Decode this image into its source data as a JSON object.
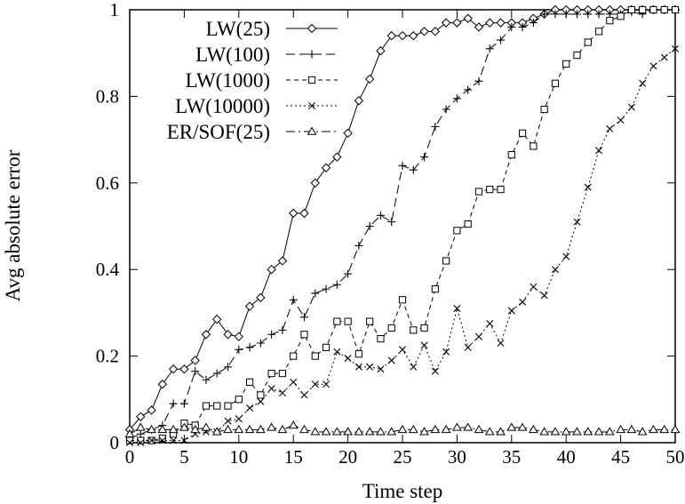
{
  "chart_data": {
    "type": "line",
    "xlabel": "Time step",
    "ylabel": "Avg absolute error",
    "xlim": [
      0,
      50
    ],
    "ylim": [
      0,
      1
    ],
    "xticks": [
      0,
      5,
      10,
      15,
      20,
      25,
      30,
      35,
      40,
      45,
      50
    ],
    "yticks": [
      0,
      0.2,
      0.4,
      0.6,
      0.8,
      1
    ],
    "ytick_labels": [
      "0",
      "0.2",
      "0.4",
      "0.6",
      "0.8",
      "1"
    ],
    "grid": false,
    "legend_position": "top-left",
    "x": [
      0,
      1,
      2,
      3,
      4,
      5,
      6,
      7,
      8,
      9,
      10,
      11,
      12,
      13,
      14,
      15,
      16,
      17,
      18,
      19,
      20,
      21,
      22,
      23,
      24,
      25,
      26,
      27,
      28,
      29,
      30,
      31,
      32,
      33,
      34,
      35,
      36,
      37,
      38,
      39,
      40,
      41,
      42,
      43,
      44,
      45,
      46,
      47,
      48,
      49,
      50
    ],
    "series": [
      {
        "name": "LW(25)",
        "marker": "diamond",
        "dash": "",
        "values": [
          0.03,
          0.06,
          0.075,
          0.135,
          0.17,
          0.17,
          0.19,
          0.25,
          0.285,
          0.25,
          0.245,
          0.315,
          0.335,
          0.4,
          0.42,
          0.53,
          0.53,
          0.6,
          0.635,
          0.66,
          0.715,
          0.79,
          0.84,
          0.905,
          0.94,
          0.94,
          0.94,
          0.95,
          0.95,
          0.97,
          0.97,
          0.98,
          0.96,
          0.97,
          0.97,
          0.97,
          0.97,
          0.98,
          0.99,
          1.0,
          1.0,
          1.0,
          1.0,
          1.0,
          1.0,
          1.0,
          1.0,
          1.0,
          1.0,
          1.0,
          1.0
        ]
      },
      {
        "name": "LW(100)",
        "marker": "plus",
        "dash": "10,5",
        "values": [
          0.01,
          0.02,
          0.03,
          0.04,
          0.09,
          0.09,
          0.165,
          0.145,
          0.16,
          0.175,
          0.215,
          0.22,
          0.23,
          0.25,
          0.26,
          0.33,
          0.29,
          0.345,
          0.355,
          0.365,
          0.39,
          0.455,
          0.5,
          0.525,
          0.51,
          0.64,
          0.63,
          0.66,
          0.73,
          0.77,
          0.795,
          0.815,
          0.835,
          0.91,
          0.93,
          0.96,
          0.96,
          0.97,
          0.99,
          0.99,
          0.99,
          0.99,
          0.99,
          0.99,
          0.99,
          0.99,
          0.995,
          0.99,
          1.0,
          1.0,
          1.0
        ]
      },
      {
        "name": "LW(1000)",
        "marker": "square",
        "dash": "5,4",
        "values": [
          0.005,
          0.005,
          0.005,
          0.01,
          0.02,
          0.045,
          0.04,
          0.085,
          0.085,
          0.085,
          0.1,
          0.14,
          0.11,
          0.16,
          0.16,
          0.2,
          0.25,
          0.2,
          0.22,
          0.28,
          0.28,
          0.205,
          0.28,
          0.24,
          0.265,
          0.33,
          0.26,
          0.265,
          0.355,
          0.42,
          0.49,
          0.505,
          0.58,
          0.585,
          0.585,
          0.665,
          0.715,
          0.685,
          0.77,
          0.83,
          0.875,
          0.895,
          0.925,
          0.95,
          0.975,
          0.985,
          1.0,
          1.0,
          1.0,
          1.0,
          1.0
        ]
      },
      {
        "name": "LW(10000)",
        "marker": "cross",
        "dash": "2,3",
        "values": [
          0.0,
          0.0,
          0.005,
          0.005,
          0.005,
          0.005,
          0.02,
          0.025,
          0.025,
          0.05,
          0.055,
          0.08,
          0.095,
          0.125,
          0.115,
          0.14,
          0.11,
          0.135,
          0.135,
          0.21,
          0.195,
          0.175,
          0.175,
          0.17,
          0.19,
          0.215,
          0.175,
          0.225,
          0.165,
          0.21,
          0.31,
          0.22,
          0.245,
          0.275,
          0.23,
          0.305,
          0.325,
          0.36,
          0.34,
          0.4,
          0.43,
          0.51,
          0.59,
          0.675,
          0.725,
          0.745,
          0.775,
          0.83,
          0.87,
          0.89,
          0.91
        ]
      },
      {
        "name": "ER/SOF(25)",
        "marker": "triangle",
        "dash": "10,4,2,4",
        "values": [
          0.02,
          0.035,
          0.03,
          0.03,
          0.03,
          0.035,
          0.03,
          0.035,
          0.025,
          0.03,
          0.03,
          0.03,
          0.03,
          0.035,
          0.03,
          0.04,
          0.03,
          0.025,
          0.025,
          0.025,
          0.025,
          0.025,
          0.025,
          0.025,
          0.025,
          0.03,
          0.03,
          0.025,
          0.03,
          0.03,
          0.035,
          0.035,
          0.03,
          0.025,
          0.025,
          0.035,
          0.035,
          0.03,
          0.025,
          0.025,
          0.025,
          0.025,
          0.025,
          0.025,
          0.025,
          0.03,
          0.03,
          0.025,
          0.03,
          0.03,
          0.03
        ]
      }
    ]
  }
}
